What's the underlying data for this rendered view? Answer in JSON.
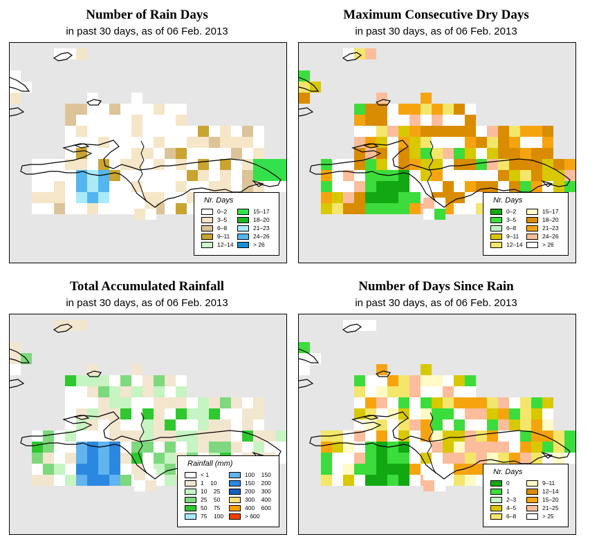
{
  "panels": [
    {
      "title": "Number of Rain Days",
      "subtitle_prefix": "in past 30 days, as of",
      "date": "06 Feb. 2013",
      "legend": {
        "title": "Nr. Days",
        "items": [
          {
            "label": "0–2",
            "color": "#ffffff"
          },
          {
            "label": "3–5",
            "color": "#f5e6c8"
          },
          {
            "label": "6–8",
            "color": "#dcc398"
          },
          {
            "label": "9–11",
            "color": "#c9a430"
          },
          {
            "label": "12–14",
            "color": "#ccfccc"
          },
          {
            "label": "15–17",
            "color": "#33e14c"
          },
          {
            "label": "18–20",
            "color": "#1fb41f"
          },
          {
            "label": "21–23",
            "color": "#aaebfa"
          },
          {
            "label": "24–26",
            "color": "#53b6f0"
          },
          {
            "label": "> 26",
            "color": "#178fd6"
          }
        ]
      }
    },
    {
      "title": "Maximum Consecutive Dry Days",
      "subtitle_prefix": "in past 30 days, as of",
      "date": "06 Feb. 2013",
      "legend": {
        "title": "Nr. Days",
        "items": [
          {
            "label": "0–2",
            "color": "#12a812"
          },
          {
            "label": "3–5",
            "color": "#3cdc3c"
          },
          {
            "label": "6–8",
            "color": "#c5f4c5"
          },
          {
            "label": "9–11",
            "color": "#d8c800"
          },
          {
            "label": "12–14",
            "color": "#f4e66a"
          },
          {
            "label": "15–17",
            "color": "#fffac6"
          },
          {
            "label": "18–20",
            "color": "#d98c00"
          },
          {
            "label": "21–23",
            "color": "#f5a40f"
          },
          {
            "label": "24–26",
            "color": "#fbbd9b"
          },
          {
            "label": "> 26",
            "color": "#ffffff"
          }
        ]
      }
    },
    {
      "title": "Total Accumulated Rainfall",
      "subtitle_prefix": "in past 30 days, as of",
      "date": "06 Feb. 2013",
      "legend": {
        "title": "Rainfall (mm)",
        "items": [
          {
            "label": "< 1",
            "color": "#ffffff"
          },
          {
            "label": "1    10",
            "color": "#f3e6cf"
          },
          {
            "label": "10    25",
            "color": "#c6f4c2"
          },
          {
            "label": "25    50",
            "color": "#7ed87e"
          },
          {
            "label": "50    75",
            "color": "#2fc82f"
          },
          {
            "label": "75    100",
            "color": "#aaebfa"
          },
          {
            "label": "100    150",
            "color": "#61b4ee"
          },
          {
            "label": "150    200",
            "color": "#2b88e0"
          },
          {
            "label": "200    300",
            "color": "#1460c0"
          },
          {
            "label": "300    400",
            "color": "#f7e27a"
          },
          {
            "label": "400    600",
            "color": "#f7a000"
          },
          {
            "label": "> 600",
            "color": "#f23f00"
          }
        ]
      }
    },
    {
      "title": "Number of Days Since Rain",
      "subtitle_prefix": "in past 30 days, as of",
      "date": "06 Feb. 2013",
      "legend": {
        "title": "Nr. Days",
        "items": [
          {
            "label": "0",
            "color": "#12a812"
          },
          {
            "label": "1",
            "color": "#3cdc3c"
          },
          {
            "label": "2–3",
            "color": "#c5f4c5"
          },
          {
            "label": "4–5",
            "color": "#d8c800"
          },
          {
            "label": "6–8",
            "color": "#f4e66a"
          },
          {
            "label": "9–11",
            "color": "#fffac6"
          },
          {
            "label": "12–14",
            "color": "#d98c00"
          },
          {
            "label": "15–20",
            "color": "#f5a40f"
          },
          {
            "label": "21–25",
            "color": "#fbbd9b"
          },
          {
            "label": "> 25",
            "color": "#ffffff"
          }
        ]
      }
    }
  ]
}
